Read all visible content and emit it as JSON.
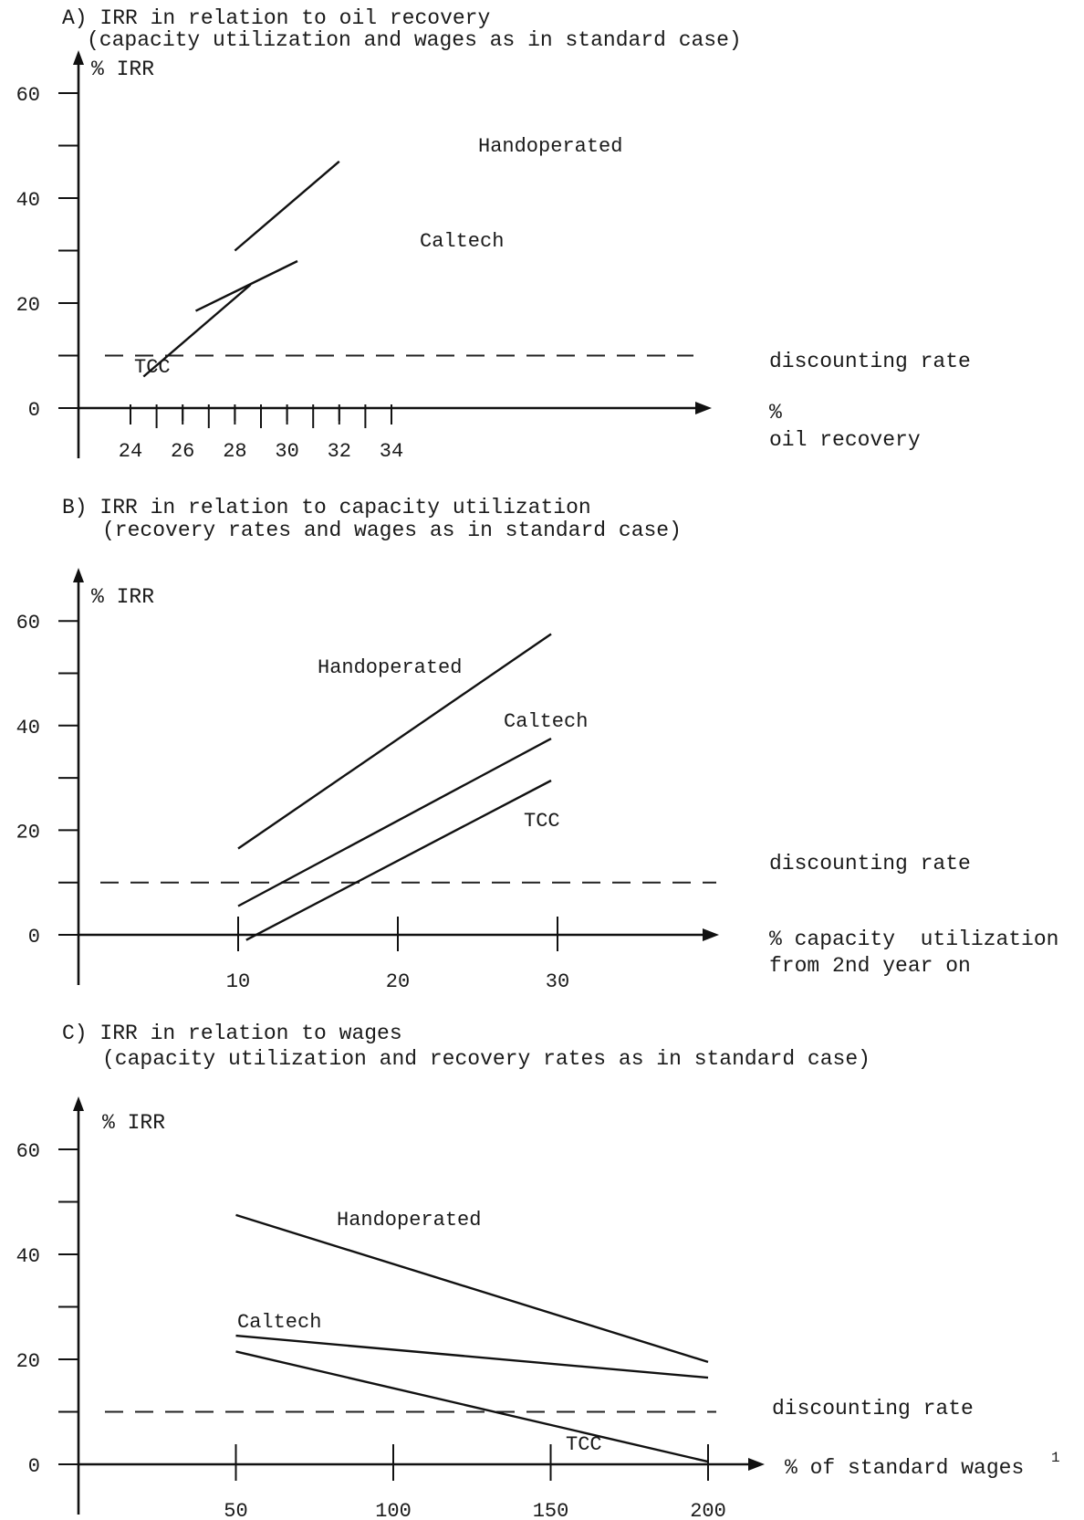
{
  "chart_data": [
    {
      "type": "line",
      "title": "A) IRR in relation to oil recovery",
      "subtitle": "(capacity utilization and wages as in standard case)",
      "ylabel": "% IRR",
      "xlabel_unit": "%",
      "xlabel": "oil recovery",
      "ylim": [
        0,
        60
      ],
      "xlim": [
        23,
        35
      ],
      "y_ticks": [
        0,
        20,
        40,
        60
      ],
      "y_minor_ticks": [
        10,
        30,
        50
      ],
      "x_ticks": [
        24,
        26,
        28,
        30,
        32,
        34
      ],
      "x_minor_ticks": [
        25,
        27,
        29,
        31,
        33
      ],
      "reference": {
        "label": "discounting rate",
        "y": 10
      },
      "series": [
        {
          "name": "Handoperated",
          "x": [
            28,
            32
          ],
          "y": [
            30,
            47
          ]
        },
        {
          "name": "Caltech",
          "x": [
            26.5,
            30.4
          ],
          "y": [
            18.5,
            28
          ]
        },
        {
          "name": "TCC",
          "x": [
            24.5,
            28.6
          ],
          "y": [
            6,
            23.5
          ]
        }
      ]
    },
    {
      "type": "line",
      "title": "B) IRR in relation to capacity utilization",
      "subtitle": "(recovery rates and wages as in standard case)",
      "ylabel": "% IRR",
      "xlabel": "% capacity  utilization",
      "xlabel_line2": "from 2nd year on",
      "ylim": [
        0,
        60
      ],
      "xlim": [
        0,
        40
      ],
      "y_ticks": [
        0,
        20,
        40,
        60
      ],
      "y_minor_ticks": [
        10,
        30,
        50
      ],
      "x_ticks": [
        10,
        20,
        30
      ],
      "reference": {
        "label": "discounting rate",
        "y": 10
      },
      "series": [
        {
          "name": "Handoperated",
          "x": [
            10,
            29.6
          ],
          "y": [
            16.5,
            57.5
          ]
        },
        {
          "name": "Caltech",
          "x": [
            10,
            29.6
          ],
          "y": [
            5.5,
            37.5
          ]
        },
        {
          "name": "TCC",
          "x": [
            10.5,
            29.6
          ],
          "y": [
            -1,
            29.5
          ]
        }
      ]
    },
    {
      "type": "line",
      "title": "C) IRR in relation to wages",
      "subtitle": "(capacity utilization and recovery rates as in standard case)",
      "ylabel": "% IRR",
      "xlabel": "% of standard wages",
      "xlabel_footnote": "1",
      "ylim": [
        0,
        60
      ],
      "xlim": [
        0,
        220
      ],
      "y_ticks": [
        0,
        20,
        40,
        60
      ],
      "y_minor_ticks": [
        10,
        30,
        50
      ],
      "x_ticks": [
        50,
        100,
        150,
        200
      ],
      "reference": {
        "label": "discounting rate",
        "y": 10
      },
      "series": [
        {
          "name": "Handoperated",
          "x": [
            50,
            200
          ],
          "y": [
            47.5,
            19.5
          ]
        },
        {
          "name": "Caltech",
          "x": [
            50,
            200
          ],
          "y": [
            24.5,
            16.5
          ]
        },
        {
          "name": "TCC",
          "x": [
            50,
            200
          ],
          "y": [
            21.5,
            0.5
          ]
        }
      ]
    }
  ]
}
